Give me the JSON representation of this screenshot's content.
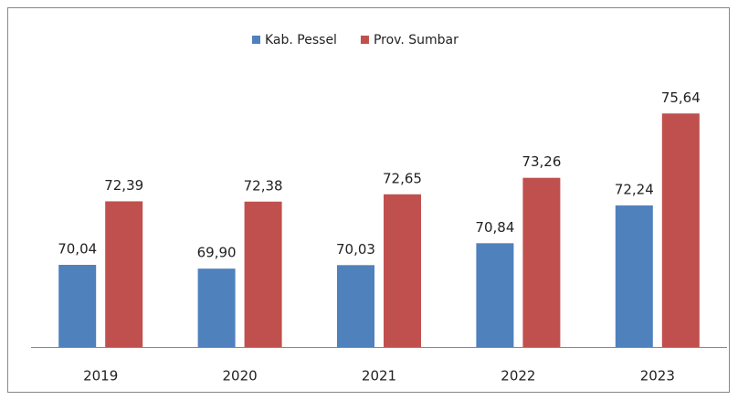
{
  "chart_data": {
    "type": "bar",
    "categories": [
      "2019",
      "2020",
      "2021",
      "2022",
      "2023"
    ],
    "series": [
      {
        "name": "Kab. Pessel",
        "color": "#4f81bd",
        "values": [
          70.04,
          69.9,
          70.03,
          70.84,
          72.24
        ],
        "value_labels": [
          "70,04",
          "69,90",
          "70,03",
          "70,84",
          "72,24"
        ]
      },
      {
        "name": "Prov. Sumbar",
        "color": "#c0504d",
        "values": [
          72.39,
          72.38,
          72.65,
          73.26,
          75.64
        ],
        "value_labels": [
          "72,39",
          "72,38",
          "72,65",
          "73,26",
          "75,64"
        ]
      }
    ],
    "ylim": [
      67,
      77
    ],
    "legend": "top"
  }
}
